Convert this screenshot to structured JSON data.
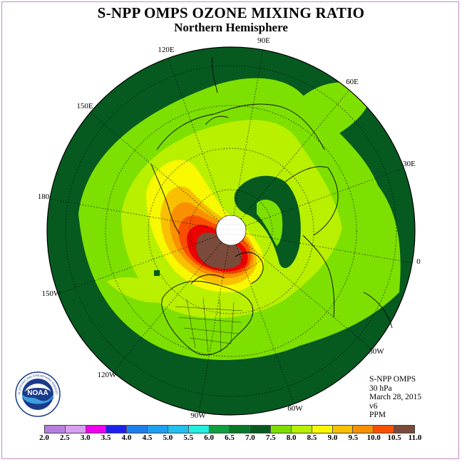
{
  "title": "S-NPP OMPS OZONE MIXING RATIO",
  "subtitle": "Northern Hemisphere",
  "longitude_labels": [
    "90E",
    "60E",
    "30E",
    "0",
    "30W",
    "60W",
    "90W",
    "120W",
    "150W",
    "180",
    "150E",
    "120E"
  ],
  "info": {
    "instrument": "S-NPP OMPS",
    "level": "30 hPa",
    "date": "March 28, 2015",
    "version": "v6",
    "units": "PPM"
  },
  "logo": {
    "name": "NOAA",
    "ring_text": "NATIONAL OCEANIC AND ATMOSPHERIC ADMINISTRATION",
    "bottom_text": "U.S. DEPARTMENT OF COMMERCE"
  },
  "colorbar": {
    "ticks": [
      "2.0",
      "2.5",
      "3.0",
      "3.5",
      "4.0",
      "4.5",
      "5.0",
      "5.5",
      "6.0",
      "6.5",
      "7.0",
      "7.5",
      "8.0",
      "8.5",
      "9.0",
      "9.5",
      "10.0",
      "10.5",
      "11.0"
    ],
    "colors": [
      "#b57fe0",
      "#d8a0f0",
      "#ee00ee",
      "#2020ee",
      "#1e7fee",
      "#1ea0ee",
      "#22c0f0",
      "#22f0e0",
      "#10a040",
      "#087828",
      "#065a20",
      "#7ee000",
      "#b8f000",
      "#f8f800",
      "#f8c000",
      "#f89000",
      "#f85000",
      "#ee0000",
      "#7a4a3a"
    ]
  },
  "palette": {
    "c65": "#087828",
    "c70": "#065a20",
    "c75": "#7ee000",
    "c80": "#b8f000",
    "c85": "#f8f800",
    "c90": "#f8c000",
    "c95": "#f89000",
    "c100": "#f85000",
    "c105": "#ee0000",
    "c110": "#7a4a3a"
  }
}
